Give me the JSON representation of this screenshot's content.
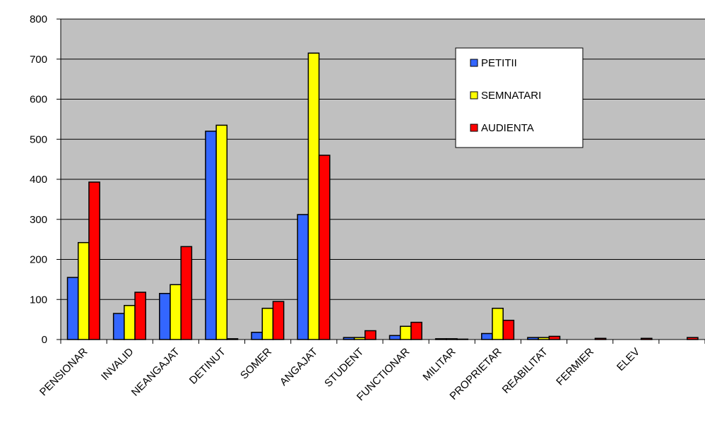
{
  "chart_data": {
    "type": "bar",
    "title": "",
    "xlabel": "",
    "ylabel": "",
    "ylim": [
      0,
      800
    ],
    "yticks": [
      0,
      100,
      200,
      300,
      400,
      500,
      600,
      700,
      800
    ],
    "grid": true,
    "legend_position": "top-right",
    "plot_background": "#c0c0c0",
    "categories": [
      "PENSIONAR",
      "INVALID",
      "NEANGAJAT",
      "DETINUT",
      "SOMER",
      "ANGAJAT",
      "STUDENT",
      "FUNCTIONAR",
      "MILITAR",
      "PROPRIETAR",
      "REABILITAT",
      "FERMIER",
      "ELEV",
      ""
    ],
    "series": [
      {
        "name": "PETITII",
        "color": "#3366ff",
        "values": [
          155,
          65,
          115,
          520,
          18,
          312,
          5,
          10,
          2,
          15,
          5,
          0,
          0,
          0
        ]
      },
      {
        "name": "SEMNATARI",
        "color": "#ffff00",
        "values": [
          242,
          85,
          137,
          535,
          78,
          715,
          5,
          33,
          2,
          78,
          5,
          0,
          0,
          0
        ]
      },
      {
        "name": "AUDIENTA",
        "color": "#ff0000",
        "values": [
          393,
          118,
          232,
          2,
          95,
          460,
          22,
          43,
          1,
          48,
          8,
          3,
          3,
          5
        ]
      }
    ]
  }
}
